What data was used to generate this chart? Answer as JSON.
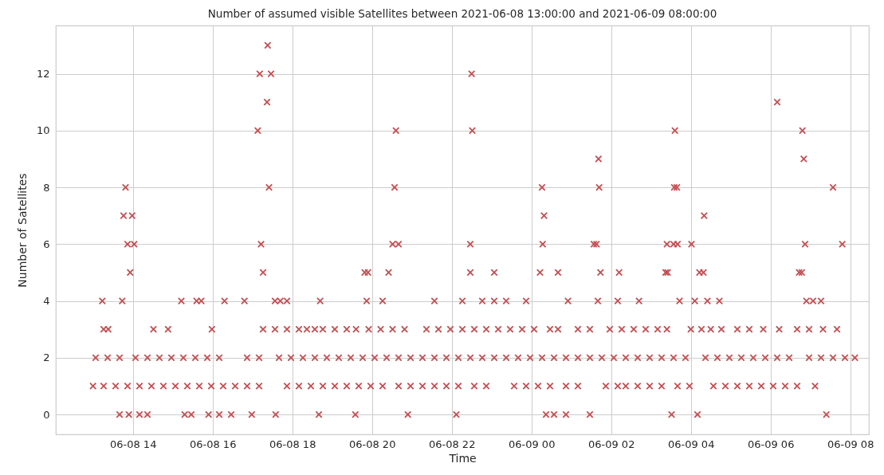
{
  "chart_data": {
    "type": "scatter",
    "title": "Number of assumed visible Satellites between 2021-06-08 13:00:00 and 2021-06-09 08:00:00",
    "xlabel": "Time",
    "ylabel": "Number of Satellites",
    "color": "#c44e52",
    "marker": "cross",
    "grid": true,
    "xlim": [
      "2021-06-08T12:04",
      "2021-06-09T08:28"
    ],
    "ylim": [
      -0.7,
      13.7
    ],
    "xticks": [
      {
        "value": "2021-06-08T14:00",
        "label": "06-08 14"
      },
      {
        "value": "2021-06-08T16:00",
        "label": "06-08 16"
      },
      {
        "value": "2021-06-08T18:00",
        "label": "06-08 18"
      },
      {
        "value": "2021-06-08T20:00",
        "label": "06-08 20"
      },
      {
        "value": "2021-06-08T22:00",
        "label": "06-08 22"
      },
      {
        "value": "2021-06-09T00:00",
        "label": "06-09 00"
      },
      {
        "value": "2021-06-09T02:00",
        "label": "06-09 02"
      },
      {
        "value": "2021-06-09T04:00",
        "label": "06-09 04"
      },
      {
        "value": "2021-06-09T06:00",
        "label": "06-09 06"
      },
      {
        "value": "2021-06-09T08:00",
        "label": "06-09 08"
      }
    ],
    "yticks": [
      0,
      2,
      4,
      6,
      8,
      10,
      12
    ],
    "x": [
      "2021-06-08T13:40",
      "2021-06-08T13:54",
      "2021-06-08T14:10",
      "2021-06-08T14:22",
      "2021-06-08T15:18",
      "2021-06-08T15:28",
      "2021-06-08T15:54",
      "2021-06-08T16:10",
      "2021-06-08T16:28",
      "2021-06-08T16:59",
      "2021-06-08T17:35",
      "2021-06-08T18:40",
      "2021-06-08T19:35",
      "2021-06-08T20:54",
      "2021-06-08T22:07",
      "2021-06-09T00:22",
      "2021-06-09T00:34",
      "2021-06-09T00:52",
      "2021-06-09T01:28",
      "2021-06-09T03:31",
      "2021-06-09T04:10",
      "2021-06-09T07:24",
      "2021-06-08T13:00",
      "2021-06-08T13:16",
      "2021-06-08T13:34",
      "2021-06-08T13:52",
      "2021-06-08T14:10",
      "2021-06-08T14:28",
      "2021-06-08T14:46",
      "2021-06-08T15:04",
      "2021-06-08T15:22",
      "2021-06-08T15:40",
      "2021-06-08T15:58",
      "2021-06-08T16:16",
      "2021-06-08T16:34",
      "2021-06-08T16:52",
      "2021-06-08T17:10",
      "2021-06-08T17:52",
      "2021-06-08T18:10",
      "2021-06-08T18:28",
      "2021-06-08T18:46",
      "2021-06-08T19:04",
      "2021-06-08T19:22",
      "2021-06-08T19:40",
      "2021-06-08T19:58",
      "2021-06-08T20:16",
      "2021-06-08T20:40",
      "2021-06-08T20:58",
      "2021-06-08T21:16",
      "2021-06-08T21:34",
      "2021-06-08T21:52",
      "2021-06-08T22:10",
      "2021-06-08T22:34",
      "2021-06-08T22:52",
      "2021-06-08T23:34",
      "2021-06-08T23:52",
      "2021-06-09T00:10",
      "2021-06-09T00:28",
      "2021-06-09T00:52",
      "2021-06-09T01:10",
      "2021-06-09T01:52",
      "2021-06-09T02:10",
      "2021-06-09T02:22",
      "2021-06-09T02:40",
      "2021-06-09T02:58",
      "2021-06-09T03:16",
      "2021-06-09T03:40",
      "2021-06-09T03:58",
      "2021-06-09T04:34",
      "2021-06-09T04:52",
      "2021-06-09T05:10",
      "2021-06-09T05:28",
      "2021-06-09T05:46",
      "2021-06-09T06:04",
      "2021-06-09T06:22",
      "2021-06-09T06:40",
      "2021-06-09T07:07",
      "2021-06-08T13:04",
      "2021-06-08T13:22",
      "2021-06-08T13:40",
      "2021-06-08T14:04",
      "2021-06-08T14:22",
      "2021-06-08T14:40",
      "2021-06-08T14:58",
      "2021-06-08T15:16",
      "2021-06-08T15:34",
      "2021-06-08T15:52",
      "2021-06-08T16:10",
      "2021-06-08T16:52",
      "2021-06-08T17:10",
      "2021-06-08T17:40",
      "2021-06-08T17:58",
      "2021-06-08T18:16",
      "2021-06-08T18:34",
      "2021-06-08T18:52",
      "2021-06-08T19:10",
      "2021-06-08T19:28",
      "2021-06-08T19:46",
      "2021-06-08T20:04",
      "2021-06-08T20:22",
      "2021-06-08T20:40",
      "2021-06-08T20:58",
      "2021-06-08T21:16",
      "2021-06-08T21:34",
      "2021-06-08T21:52",
      "2021-06-08T22:10",
      "2021-06-08T22:28",
      "2021-06-08T22:46",
      "2021-06-08T23:04",
      "2021-06-08T23:22",
      "2021-06-08T23:40",
      "2021-06-08T23:58",
      "2021-06-09T00:16",
      "2021-06-09T00:34",
      "2021-06-09T00:52",
      "2021-06-09T01:10",
      "2021-06-09T01:28",
      "2021-06-09T01:46",
      "2021-06-09T02:04",
      "2021-06-09T02:22",
      "2021-06-09T02:40",
      "2021-06-09T02:58",
      "2021-06-09T03:16",
      "2021-06-09T03:34",
      "2021-06-09T03:52",
      "2021-06-09T04:22",
      "2021-06-09T04:40",
      "2021-06-09T04:58",
      "2021-06-09T05:16",
      "2021-06-09T05:34",
      "2021-06-09T05:52",
      "2021-06-09T06:10",
      "2021-06-09T06:28",
      "2021-06-09T06:58",
      "2021-06-09T07:16",
      "2021-06-09T07:34",
      "2021-06-09T07:52",
      "2021-06-09T08:07",
      "2021-06-08T13:16",
      "2021-06-08T13:23",
      "2021-06-08T14:31",
      "2021-06-08T14:53",
      "2021-06-08T15:59",
      "2021-06-08T17:16",
      "2021-06-08T17:34",
      "2021-06-08T17:52",
      "2021-06-08T18:10",
      "2021-06-08T18:22",
      "2021-06-08T18:34",
      "2021-06-08T18:46",
      "2021-06-08T19:04",
      "2021-06-08T19:22",
      "2021-06-08T19:36",
      "2021-06-08T19:55",
      "2021-06-08T20:13",
      "2021-06-08T20:31",
      "2021-06-08T20:49",
      "2021-06-08T21:22",
      "2021-06-08T21:40",
      "2021-06-08T21:58",
      "2021-06-08T22:16",
      "2021-06-08T22:34",
      "2021-06-08T22:52",
      "2021-06-08T23:10",
      "2021-06-08T23:28",
      "2021-06-08T23:46",
      "2021-06-09T00:04",
      "2021-06-09T00:28",
      "2021-06-09T00:40",
      "2021-06-09T01:10",
      "2021-06-09T01:28",
      "2021-06-09T01:58",
      "2021-06-09T02:16",
      "2021-06-09T02:34",
      "2021-06-09T02:52",
      "2021-06-09T03:10",
      "2021-06-09T03:24",
      "2021-06-09T04:00",
      "2021-06-09T04:16",
      "2021-06-09T04:30",
      "2021-06-09T04:46",
      "2021-06-09T05:10",
      "2021-06-09T05:28",
      "2021-06-09T05:49",
      "2021-06-09T06:13",
      "2021-06-09T06:40",
      "2021-06-09T06:58",
      "2021-06-09T07:19",
      "2021-06-09T07:40",
      "2021-06-08T13:14",
      "2021-06-08T13:44",
      "2021-06-08T15:13",
      "2021-06-08T15:36",
      "2021-06-08T15:43",
      "2021-06-08T16:18",
      "2021-06-08T16:48",
      "2021-06-08T17:34",
      "2021-06-08T17:42",
      "2021-06-08T17:52",
      "2021-06-08T18:42",
      "2021-06-08T19:52",
      "2021-06-08T20:16",
      "2021-06-08T21:34",
      "2021-06-08T22:16",
      "2021-06-08T22:46",
      "2021-06-08T23:04",
      "2021-06-08T23:22",
      "2021-06-08T23:52",
      "2021-06-09T00:55",
      "2021-06-09T01:40",
      "2021-06-09T02:10",
      "2021-06-09T02:42",
      "2021-06-09T03:43",
      "2021-06-09T04:06",
      "2021-06-09T04:25",
      "2021-06-09T04:43",
      "2021-06-09T06:54",
      "2021-06-09T07:04",
      "2021-06-09T07:16",
      "2021-06-08T13:56",
      "2021-06-08T17:16",
      "2021-06-08T19:49",
      "2021-06-08T19:54",
      "2021-06-08T20:25",
      "2021-06-08T22:28",
      "2021-06-08T23:04",
      "2021-06-09T00:13",
      "2021-06-09T00:40",
      "2021-06-09T01:44",
      "2021-06-09T02:12",
      "2021-06-09T03:22",
      "2021-06-09T03:25",
      "2021-06-09T04:13",
      "2021-06-09T04:19",
      "2021-06-09T06:43",
      "2021-06-09T06:47",
      "2021-06-08T13:52",
      "2021-06-08T14:02",
      "2021-06-08T17:13",
      "2021-06-08T20:31",
      "2021-06-08T20:40",
      "2021-06-08T22:28",
      "2021-06-09T00:17",
      "2021-06-09T01:34",
      "2021-06-09T01:38",
      "2021-06-09T03:24",
      "2021-06-09T03:34",
      "2021-06-09T03:40",
      "2021-06-09T04:01",
      "2021-06-09T06:52",
      "2021-06-09T07:48",
      "2021-06-08T13:46",
      "2021-06-08T13:59",
      "2021-06-09T00:19",
      "2021-06-09T04:20",
      "2021-06-08T13:49",
      "2021-06-08T17:25",
      "2021-06-08T20:34",
      "2021-06-09T00:16",
      "2021-06-09T01:42",
      "2021-06-09T03:35",
      "2021-06-09T03:39",
      "2021-06-09T07:34",
      "2021-06-09T01:41",
      "2021-06-09T06:50",
      "2021-06-08T17:08",
      "2021-06-08T20:36",
      "2021-06-08T22:31",
      "2021-06-09T03:36",
      "2021-06-09T06:48",
      "2021-06-08T17:22",
      "2021-06-09T06:10",
      "2021-06-08T17:11",
      "2021-06-08T17:28",
      "2021-06-08T22:30",
      "2021-06-08T17:23"
    ],
    "values": [
      0,
      0,
      0,
      0,
      0,
      0,
      0,
      0,
      0,
      0,
      0,
      0,
      0,
      0,
      0,
      0,
      0,
      0,
      0,
      0,
      0,
      0,
      1,
      1,
      1,
      1,
      1,
      1,
      1,
      1,
      1,
      1,
      1,
      1,
      1,
      1,
      1,
      1,
      1,
      1,
      1,
      1,
      1,
      1,
      1,
      1,
      1,
      1,
      1,
      1,
      1,
      1,
      1,
      1,
      1,
      1,
      1,
      1,
      1,
      1,
      1,
      1,
      1,
      1,
      1,
      1,
      1,
      1,
      1,
      1,
      1,
      1,
      1,
      1,
      1,
      1,
      1,
      2,
      2,
      2,
      2,
      2,
      2,
      2,
      2,
      2,
      2,
      2,
      2,
      2,
      2,
      2,
      2,
      2,
      2,
      2,
      2,
      2,
      2,
      2,
      2,
      2,
      2,
      2,
      2,
      2,
      2,
      2,
      2,
      2,
      2,
      2,
      2,
      2,
      2,
      2,
      2,
      2,
      2,
      2,
      2,
      2,
      2,
      2,
      2,
      2,
      2,
      2,
      2,
      2,
      2,
      2,
      2,
      2,
      2,
      2,
      2,
      2,
      3,
      3,
      3,
      3,
      3,
      3,
      3,
      3,
      3,
      3,
      3,
      3,
      3,
      3,
      3,
      3,
      3,
      3,
      3,
      3,
      3,
      3,
      3,
      3,
      3,
      3,
      3,
      3,
      3,
      3,
      3,
      3,
      3,
      3,
      3,
      3,
      3,
      3,
      3,
      3,
      3,
      3,
      3,
      3,
      3,
      3,
      3,
      3,
      3,
      3,
      3,
      4,
      4,
      4,
      4,
      4,
      4,
      4,
      4,
      4,
      4,
      4,
      4,
      4,
      4,
      4,
      4,
      4,
      4,
      4,
      4,
      4,
      4,
      4,
      4,
      4,
      4,
      4,
      4,
      4,
      4,
      5,
      5,
      5,
      5,
      5,
      5,
      5,
      5,
      5,
      5,
      5,
      5,
      5,
      5,
      5,
      5,
      5,
      6,
      6,
      6,
      6,
      6,
      6,
      6,
      6,
      6,
      6,
      6,
      6,
      6,
      6,
      6,
      7,
      7,
      7,
      7,
      8,
      8,
      8,
      8,
      8,
      8,
      8,
      8,
      9,
      9,
      10,
      10,
      10,
      10,
      10,
      11,
      11,
      12,
      12,
      12,
      13
    ]
  }
}
